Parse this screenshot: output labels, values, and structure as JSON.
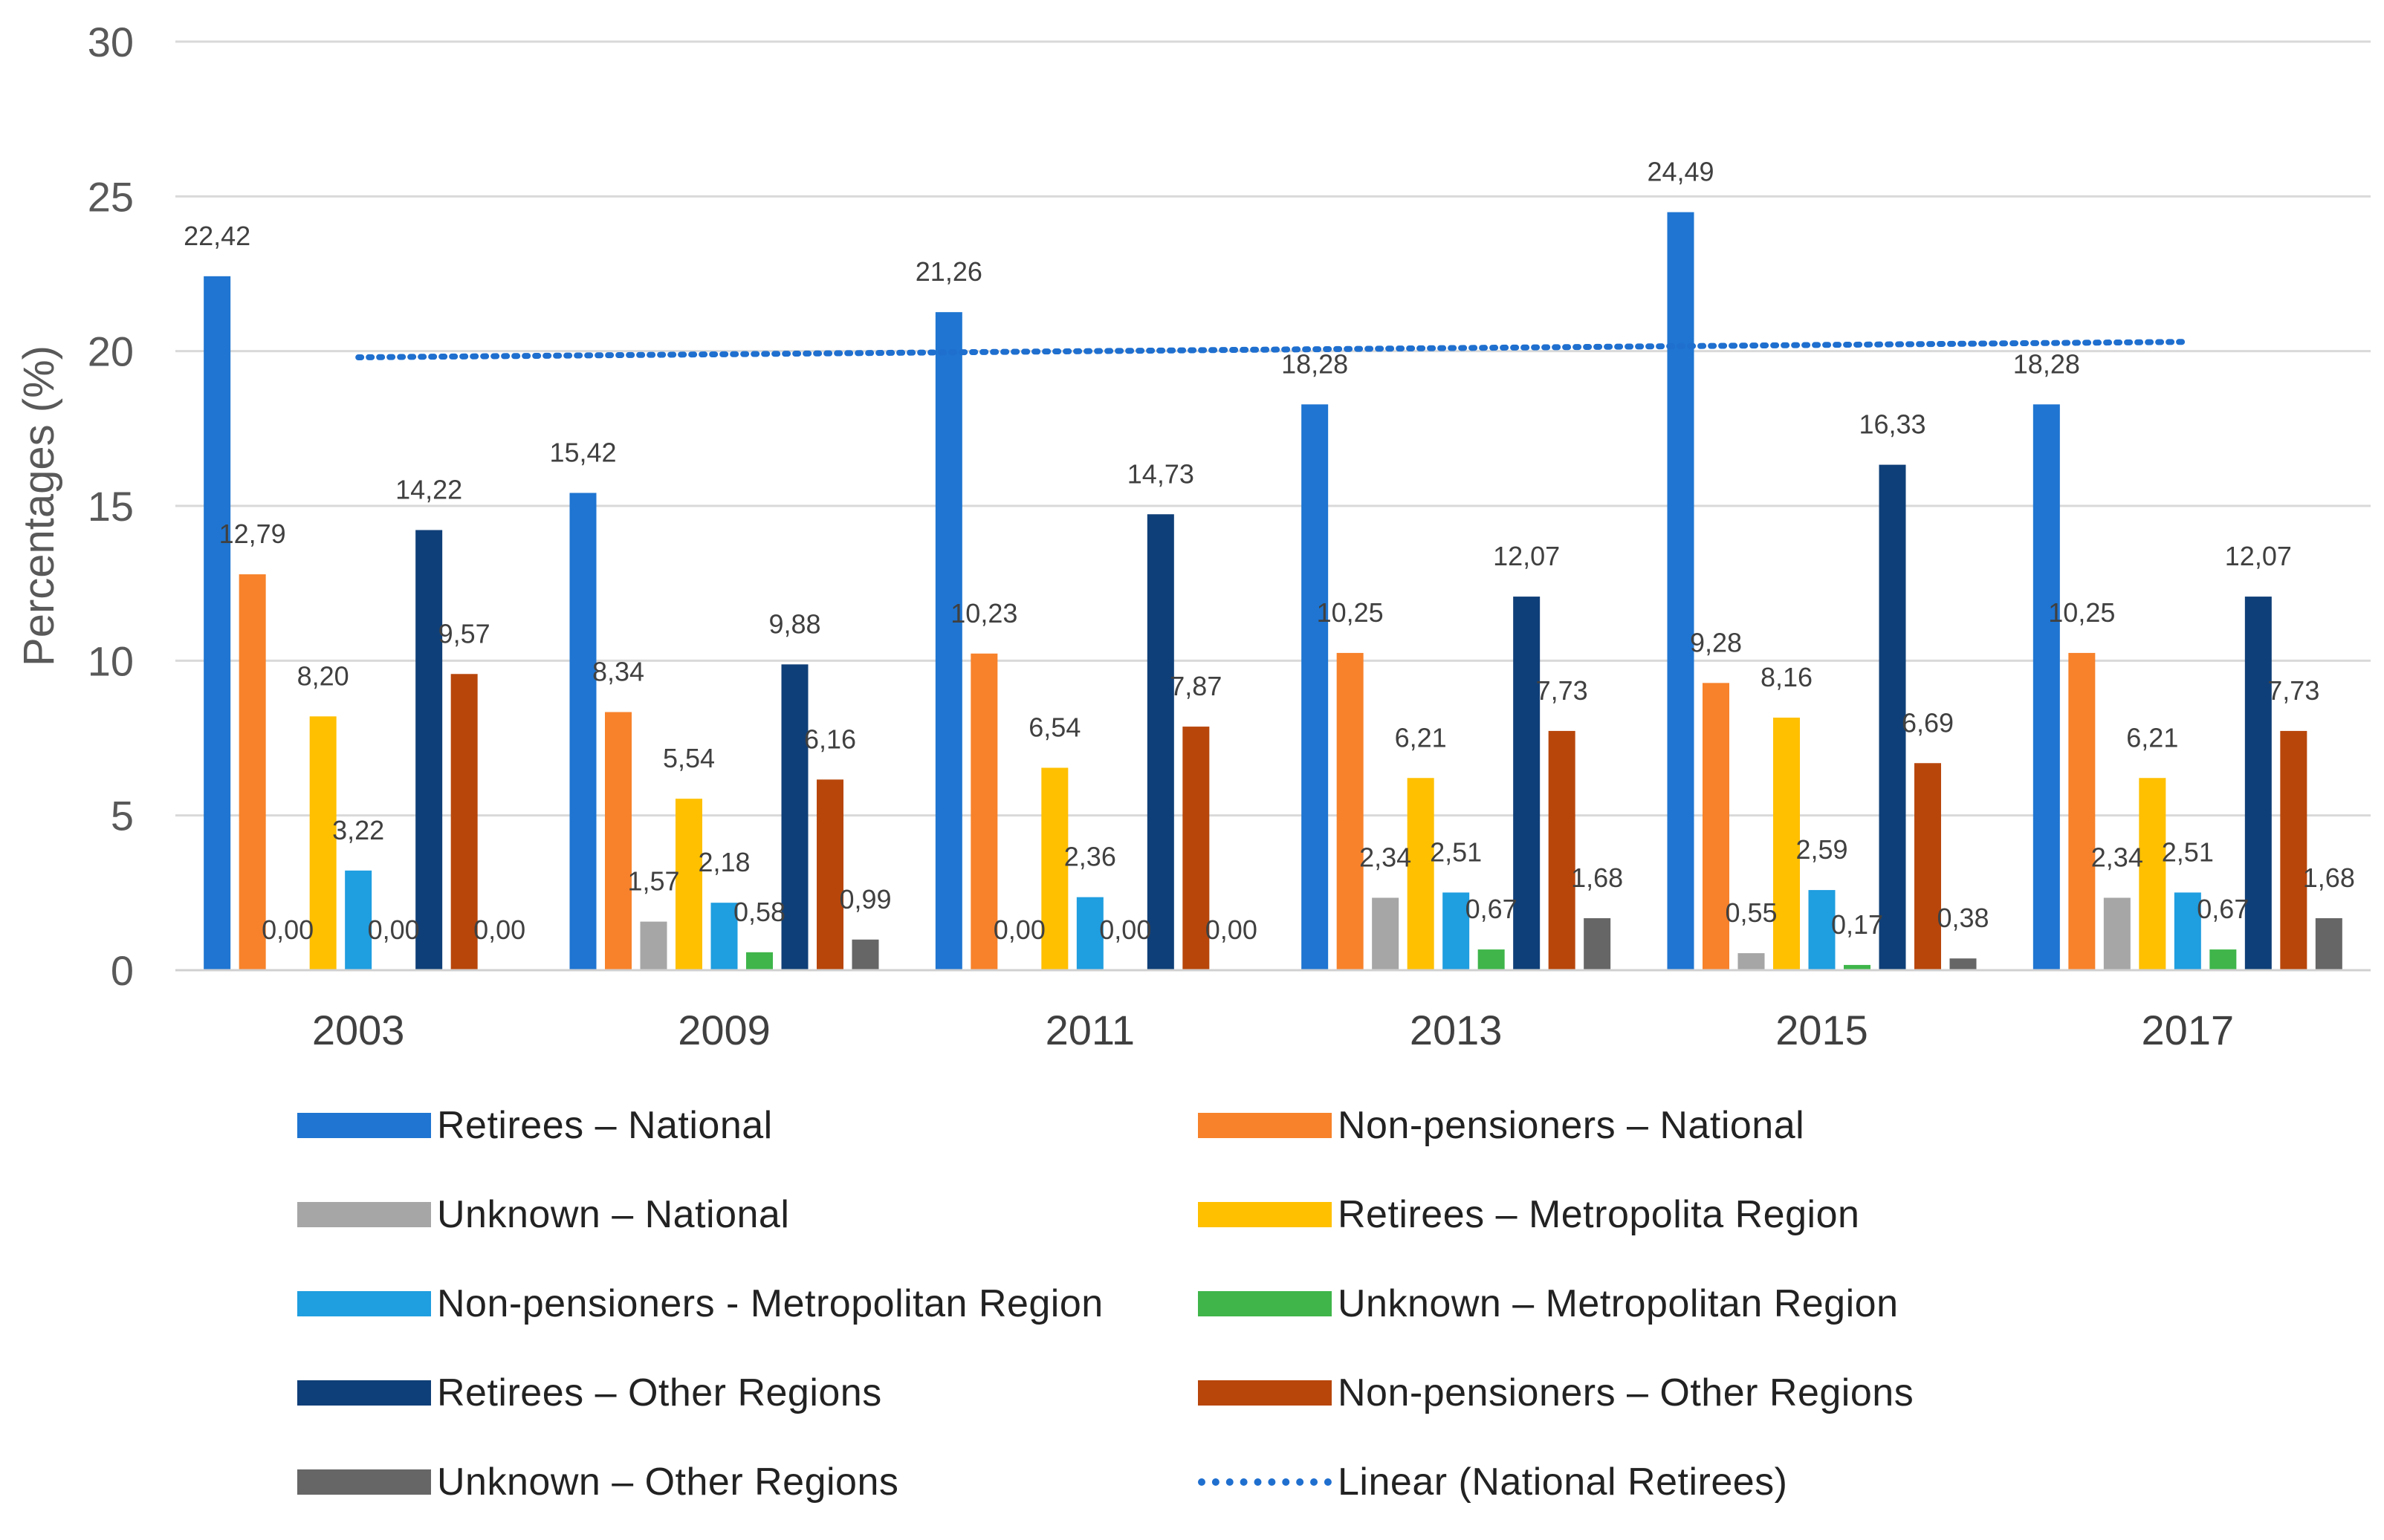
{
  "chart_data": {
    "type": "bar",
    "title": "",
    "xlabel": "",
    "ylabel": "Percentages (%)",
    "ylim": [
      0,
      30
    ],
    "yticks": [
      "0",
      "5",
      "10",
      "15",
      "20",
      "25",
      "30"
    ],
    "grid": true,
    "legend_position": "bottom",
    "categories": [
      "2003",
      "2009",
      "2011",
      "2013",
      "2015",
      "2017"
    ],
    "series": [
      {
        "name": "Retirees – National",
        "color": "#1f75d1",
        "values": [
          22.42,
          15.42,
          21.26,
          18.28,
          24.49,
          18.28
        ],
        "labels": [
          "22,42",
          "15,42",
          "21,26",
          "18,28",
          "24,49",
          "18,28"
        ]
      },
      {
        "name": "Non-pensioners – National",
        "color": "#f7822b",
        "values": [
          12.79,
          8.34,
          10.23,
          10.25,
          9.28,
          10.25
        ],
        "labels": [
          "12,79",
          "8,34",
          "10,23",
          "10,25",
          "9,28",
          "10,25"
        ]
      },
      {
        "name": "Unknown – National",
        "color": "#a6a6a6",
        "values": [
          0.0,
          1.57,
          0.0,
          2.34,
          0.55,
          2.34
        ],
        "labels": [
          "0,00",
          "1,57",
          "0,00",
          "2,34",
          "0,55",
          "2,34"
        ]
      },
      {
        "name": "Retirees – Metropolita Region",
        "color": "#ffc000",
        "values": [
          8.2,
          5.54,
          6.54,
          6.21,
          8.16,
          6.21
        ],
        "labels": [
          "8,20",
          "5,54",
          "6,54",
          "6,21",
          "8,16",
          "6,21"
        ]
      },
      {
        "name": "Non-pensioners - Metropolitan Region",
        "color": "#1f9ee0",
        "values": [
          3.22,
          2.18,
          2.36,
          2.51,
          2.59,
          2.51
        ],
        "labels": [
          "3,22",
          "2,18",
          "2,36",
          "2,51",
          "2,59",
          "2,51"
        ]
      },
      {
        "name": "Unknown – Metropolitan Region",
        "color": "#3fb54a",
        "values": [
          0.0,
          0.58,
          0.0,
          0.67,
          0.17,
          0.67
        ],
        "labels": [
          "0,00",
          "0,58",
          "0,00",
          "0,67",
          "0,17",
          "0,67"
        ]
      },
      {
        "name": "Retirees – Other Regions",
        "color": "#0f3f78",
        "values": [
          14.22,
          9.88,
          14.73,
          12.07,
          16.33,
          12.07
        ],
        "labels": [
          "14,22",
          "9,88",
          "14,73",
          "12,07",
          "16,33",
          "12,07"
        ]
      },
      {
        "name": "Non-pensioners – Other Regions",
        "color": "#b8460b",
        "values": [
          9.57,
          6.16,
          7.87,
          7.73,
          6.69,
          7.73
        ],
        "labels": [
          "9,57",
          "6,16",
          "7,87",
          "7,73",
          "6,69",
          "7,73"
        ]
      },
      {
        "name": "Unknown – Other Regions",
        "color": "#666666",
        "values": [
          0.0,
          0.99,
          0.0,
          1.68,
          0.38,
          1.68
        ],
        "labels": [
          "0,00",
          "0,99",
          "0,00",
          "1,68",
          "0,38",
          "1,68"
        ]
      }
    ],
    "trendline": {
      "name": "Linear (National Retirees)",
      "series": "Retirees – National",
      "color": "#1f6fcf",
      "start_value": 19.8,
      "end_value": 20.3
    }
  }
}
